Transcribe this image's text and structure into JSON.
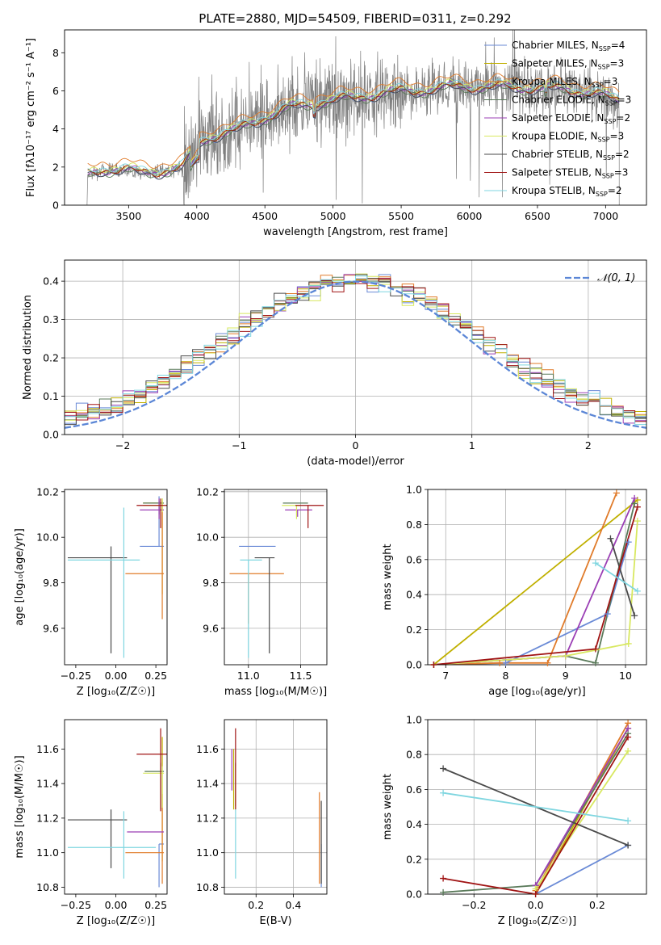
{
  "figure_title": "PLATE=2880, MJD=54509, FIBERID=0311, z=0.292",
  "colors": {
    "Chabrier MILES": "#6a8ad6",
    "Salpeter MILES": "#c0b000",
    "Kroupa MILES": "#e07b2a",
    "Chabrier ELODIE": "#5a7a5a",
    "Salpeter ELODIE": "#9b3fb5",
    "Kroupa ELODIE": "#d8e860",
    "Chabrier STELIB": "#4a4a4a",
    "Salpeter STELIB": "#a01414",
    "Kroupa STELIB": "#7fd6e0",
    "data": "#7f7f7f",
    "normal": "#5b86d6"
  },
  "chart_data": [
    {
      "id": "spectrum",
      "type": "line",
      "xlabel": "wavelength [Angstrom, rest frame]",
      "ylabel": "Flux [fλ10⁻¹⁷ erg cm⁻² s⁻¹ A⁻¹]",
      "xlim": [
        3030,
        7300
      ],
      "ylim": [
        0,
        9.2
      ],
      "xticks": [
        3500,
        4000,
        4500,
        5000,
        5500,
        6000,
        6500,
        7000
      ],
      "yticks": [
        0,
        2,
        4,
        6,
        8
      ],
      "legend_position": "upper right",
      "legend": [
        {
          "label": "Chabrier MILES, N_SSP=4",
          "main": "Chabrier MILES, N",
          "sub": "SSP",
          "tail": "=4"
        },
        {
          "label": "Salpeter MILES, N_SSP=3",
          "main": "Salpeter MILES, N",
          "sub": "SSP",
          "tail": "=3"
        },
        {
          "label": "Kroupa MILES, N_SSP=3",
          "main": "Kroupa MILES, N",
          "sub": "SSP",
          "tail": "=3"
        },
        {
          "label": "Chabrier ELODIE, N_SSP=3",
          "main": "Chabrier ELODIE, N",
          "sub": "SSP",
          "tail": "=3"
        },
        {
          "label": "Salpeter ELODIE, N_SSP=2",
          "main": "Salpeter ELODIE, N",
          "sub": "SSP",
          "tail": "=2"
        },
        {
          "label": "Kroupa ELODIE, N_SSP=3",
          "main": "Kroupa ELODIE, N",
          "sub": "SSP",
          "tail": "=3"
        },
        {
          "label": "Chabrier STELIB, N_SSP=2",
          "main": "Chabrier STELIB, N",
          "sub": "SSP",
          "tail": "=2"
        },
        {
          "label": "Salpeter STELIB, N_SSP=3",
          "main": "Salpeter STELIB, N",
          "sub": "SSP",
          "tail": "=3"
        },
        {
          "label": "Kroupa STELIB, N_SSP=2",
          "main": "Kroupa STELIB, N",
          "sub": "SSP",
          "tail": "=2"
        }
      ],
      "model_continuum": {
        "x": [
          3200,
          3300,
          3400,
          3500,
          3600,
          3700,
          3800,
          3900,
          4000,
          4100,
          4300,
          4500,
          4700,
          4900,
          5100,
          5300,
          5500,
          5700,
          5900,
          6100,
          6300,
          6500,
          6700,
          6900,
          7100
        ],
        "y": [
          1.6,
          1.85,
          1.9,
          1.85,
          1.7,
          1.75,
          1.85,
          2.0,
          3.2,
          3.6,
          3.95,
          4.6,
          5.15,
          5.4,
          5.6,
          5.8,
          6.0,
          6.05,
          6.25,
          6.2,
          6.2,
          6.15,
          6.1,
          5.9,
          5.5
        ]
      },
      "data_spectrum": {
        "start": 3195,
        "end": 7100,
        "note": "noisy observed spectrum around the model"
      }
    },
    {
      "id": "residuals",
      "type": "histogram",
      "xlabel": "(data-model)/error",
      "ylabel": "Normed distribution",
      "xlim": [
        -2.5,
        2.5
      ],
      "ylim": [
        0,
        0.455
      ],
      "xticks": [
        -2,
        -1,
        0,
        1,
        2
      ],
      "yticks": [
        0.0,
        0.1,
        0.2,
        0.3,
        0.4
      ],
      "legend": [
        "𝒩(0, 1)"
      ],
      "legend_position": "upper right",
      "bins": 50
    },
    {
      "id": "age-vs-Z",
      "type": "errorbar",
      "xlabel": "Z [log₁₀(Z/Z☉)]",
      "ylabel": "age  [log₁₀(age/yr)]",
      "xlim": [
        -0.32,
        0.32
      ],
      "ylim": [
        9.44,
        10.21
      ],
      "xticks": [
        -0.25,
        0.0,
        0.25
      ],
      "yticks": [
        9.6,
        9.8,
        10.0,
        10.2
      ],
      "points": [
        {
          "series": "Chabrier MILES",
          "x": 0.27,
          "y": 9.96,
          "xerr": [
            0.12,
            0.03
          ],
          "yerr": [
            0.0,
            0.22
          ]
        },
        {
          "series": "Salpeter MILES",
          "x": 0.29,
          "y": 10.15,
          "xerr": [
            0.12,
            0.0
          ],
          "yerr": [
            0.4,
            0.02
          ]
        },
        {
          "series": "Kroupa MILES",
          "x": 0.29,
          "y": 9.84,
          "xerr": [
            0.23,
            0.01
          ],
          "yerr": [
            0.2,
            0.32
          ]
        },
        {
          "series": "Chabrier ELODIE",
          "x": 0.27,
          "y": 10.15,
          "xerr": [
            0.1,
            0.03
          ],
          "yerr": [
            0.05,
            0.01
          ]
        },
        {
          "series": "Salpeter ELODIE",
          "x": 0.27,
          "y": 10.12,
          "xerr": [
            0.12,
            0.03
          ],
          "yerr": [
            0.04,
            0.05
          ]
        },
        {
          "series": "Kroupa ELODIE",
          "x": 0.29,
          "y": 10.14,
          "xerr": [
            0.12,
            0.01
          ],
          "yerr": [
            0.03,
            0.03
          ]
        },
        {
          "series": "Chabrier STELIB",
          "x": -0.03,
          "y": 9.91,
          "xerr": [
            0.27,
            0.1
          ],
          "yerr": [
            0.42,
            0.05
          ]
        },
        {
          "series": "Salpeter STELIB",
          "x": 0.28,
          "y": 10.14,
          "xerr": [
            0.15,
            0.04
          ],
          "yerr": [
            0.1,
            0.03
          ]
        },
        {
          "series": "Kroupa STELIB",
          "x": 0.05,
          "y": 9.9,
          "xerr": [
            0.35,
            0.1
          ],
          "yerr": [
            0.43,
            0.23
          ]
        }
      ]
    },
    {
      "id": "age-vs-mass",
      "type": "errorbar",
      "xlabel": "mass [log₁₀(M/M☉)]",
      "xlim": [
        10.77,
        11.75
      ],
      "ylim": [
        9.44,
        10.21
      ],
      "xticks": [
        11.0,
        11.5
      ],
      "yticks": [
        9.6,
        9.8,
        10.0,
        10.2
      ],
      "points": [
        {
          "series": "Chabrier MILES",
          "x": 11.05,
          "y": 9.96,
          "xerr": [
            0.14,
            0.21
          ],
          "yerr": [
            0.0,
            0.0
          ]
        },
        {
          "series": "Salpeter MILES",
          "x": 11.55,
          "y": 10.15,
          "xerr": [
            0.0,
            0.0
          ],
          "yerr": [
            0.0,
            0.0
          ]
        },
        {
          "series": "Kroupa MILES",
          "x": 11.0,
          "y": 9.84,
          "xerr": [
            0.18,
            0.34
          ],
          "yerr": [
            0.22,
            0.0
          ]
        },
        {
          "series": "Chabrier ELODIE",
          "x": 11.47,
          "y": 10.15,
          "xerr": [
            0.14,
            0.1
          ],
          "yerr": [
            0.0,
            0.0
          ]
        },
        {
          "series": "Salpeter ELODIE",
          "x": 11.47,
          "y": 10.12,
          "xerr": [
            0.12,
            0.14
          ],
          "yerr": [
            0.03,
            0.0
          ]
        },
        {
          "series": "Kroupa ELODIE",
          "x": 11.46,
          "y": 10.14,
          "xerr": [
            0.14,
            0.04
          ],
          "yerr": [
            0.06,
            0.0
          ]
        },
        {
          "series": "Chabrier STELIB",
          "x": 11.2,
          "y": 9.91,
          "xerr": [
            0.14,
            0.05
          ],
          "yerr": [
            0.42,
            0.0
          ]
        },
        {
          "series": "Salpeter STELIB",
          "x": 11.57,
          "y": 10.14,
          "xerr": [
            0.12,
            0.15
          ],
          "yerr": [
            0.1,
            0.0
          ]
        },
        {
          "series": "Kroupa STELIB",
          "x": 11.0,
          "y": 9.9,
          "xerr": [
            0.08,
            0.13
          ],
          "yerr": [
            0.43,
            0.0
          ]
        }
      ]
    },
    {
      "id": "weight-vs-age",
      "type": "line",
      "xlabel": "age  [log₁₀(age/yr)]",
      "ylabel": "mass weight",
      "xlim": [
        6.7,
        10.35
      ],
      "ylim": [
        0,
        1
      ],
      "xticks": [
        7,
        8,
        9,
        10
      ],
      "yticks": [
        0.0,
        0.2,
        0.4,
        0.6,
        0.8,
        1.0
      ],
      "series": [
        {
          "name": "Chabrier MILES",
          "x": [
            6.8,
            8.0,
            9.7,
            10.05
          ],
          "y": [
            0.0,
            0.01,
            0.29,
            0.7
          ]
        },
        {
          "name": "Salpeter MILES",
          "x": [
            6.8,
            10.2
          ],
          "y": [
            0.0,
            0.94
          ]
        },
        {
          "name": "Kroupa MILES",
          "x": [
            6.8,
            7.9,
            8.7,
            9.85
          ],
          "y": [
            0.0,
            0.01,
            0.01,
            0.98
          ]
        },
        {
          "name": "Chabrier ELODIE",
          "x": [
            6.8,
            9.0,
            9.5,
            10.15
          ],
          "y": [
            0.0,
            0.05,
            0.01,
            0.92
          ]
        },
        {
          "name": "Salpeter ELODIE",
          "x": [
            6.8,
            9.0,
            10.15
          ],
          "y": [
            0.0,
            0.05,
            0.95
          ]
        },
        {
          "name": "Kroupa ELODIE",
          "x": [
            6.8,
            9.0,
            10.05,
            10.2
          ],
          "y": [
            0.0,
            0.05,
            0.12,
            0.82
          ]
        },
        {
          "name": "Chabrier STELIB",
          "x": [
            9.75,
            10.15
          ],
          "y": [
            0.72,
            0.28
          ]
        },
        {
          "name": "Salpeter STELIB",
          "x": [
            6.8,
            9.5,
            10.2
          ],
          "y": [
            0.0,
            0.09,
            0.9
          ]
        },
        {
          "name": "Kroupa STELIB",
          "x": [
            9.5,
            10.2
          ],
          "y": [
            0.58,
            0.42
          ]
        }
      ]
    },
    {
      "id": "mass-vs-Z",
      "type": "errorbar",
      "xlabel": "Z [log₁₀(Z/Z☉)]",
      "ylabel": "mass [log₁₀(M/M☉)]",
      "xlim": [
        -0.32,
        0.32
      ],
      "ylim": [
        10.76,
        11.77
      ],
      "xticks": [
        -0.25,
        0.0,
        0.25
      ],
      "yticks": [
        10.8,
        11.0,
        11.2,
        11.4,
        11.6
      ],
      "points": [
        {
          "series": "Chabrier MILES",
          "x": 0.27,
          "y": 11.05,
          "xerr": [
            0.0,
            0.03
          ],
          "yerr": [
            0.25,
            0.0
          ]
        },
        {
          "series": "Salpeter MILES",
          "x": 0.29,
          "y": 11.55,
          "xerr": [
            0.0,
            0.0
          ],
          "yerr": [
            0.6,
            0.12
          ]
        },
        {
          "series": "Kroupa MILES",
          "x": 0.29,
          "y": 11.0,
          "xerr": [
            0.23,
            0.01
          ],
          "yerr": [
            0.18,
            0.34
          ]
        },
        {
          "series": "Chabrier ELODIE",
          "x": 0.28,
          "y": 11.47,
          "xerr": [
            0.1,
            0.02
          ],
          "yerr": [
            0.22,
            0.05
          ]
        },
        {
          "series": "Salpeter ELODIE",
          "x": 0.27,
          "y": 11.12,
          "xerr": [
            0.2,
            0.03
          ],
          "yerr": [
            0.0,
            0.0
          ]
        },
        {
          "series": "Kroupa ELODIE",
          "x": 0.29,
          "y": 11.46,
          "xerr": [
            0.12,
            0.01
          ],
          "yerr": [
            0.2,
            0.04
          ]
        },
        {
          "series": "Chabrier STELIB",
          "x": -0.03,
          "y": 11.19,
          "xerr": [
            0.27,
            0.1
          ],
          "yerr": [
            0.28,
            0.06
          ]
        },
        {
          "series": "Salpeter STELIB",
          "x": 0.28,
          "y": 11.57,
          "xerr": [
            0.15,
            0.04
          ],
          "yerr": [
            0.33,
            0.15
          ]
        },
        {
          "series": "Kroupa STELIB",
          "x": 0.05,
          "y": 11.03,
          "xerr": [
            0.35,
            0.2
          ],
          "yerr": [
            0.18,
            0.21
          ]
        }
      ]
    },
    {
      "id": "mass-vs-EBV",
      "type": "errorbar",
      "xlabel": "E(B-V)",
      "xlim": [
        0.03,
        0.58
      ],
      "ylim": [
        10.76,
        11.77
      ],
      "xticks": [
        0.2,
        0.4
      ],
      "yticks": [
        10.8,
        11.0,
        11.2,
        11.4,
        11.6
      ],
      "points": [
        {
          "series": "Chabrier MILES",
          "x": 0.55,
          "y": 11.05,
          "yerr": [
            0.25,
            0.0
          ]
        },
        {
          "series": "Salpeter MILES",
          "x": 0.08,
          "y": 11.45,
          "yerr": [
            0.2,
            0.15
          ]
        },
        {
          "series": "Kroupa MILES",
          "x": 0.54,
          "y": 11.1,
          "yerr": [
            0.28,
            0.25
          ]
        },
        {
          "series": "Chabrier ELODIE",
          "x": 0.09,
          "y": 11.47,
          "yerr": [
            0.2,
            0.05
          ]
        },
        {
          "series": "Salpeter ELODIE",
          "x": 0.07,
          "y": 11.5,
          "yerr": [
            0.14,
            0.1
          ]
        },
        {
          "series": "Kroupa ELODIE",
          "x": 0.09,
          "y": 11.45,
          "yerr": [
            0.2,
            0.05
          ]
        },
        {
          "series": "Chabrier STELIB",
          "x": 0.55,
          "y": 11.1,
          "yerr": [
            0.28,
            0.2
          ]
        },
        {
          "series": "Salpeter STELIB",
          "x": 0.09,
          "y": 11.5,
          "yerr": [
            0.25,
            0.22
          ]
        },
        {
          "series": "Kroupa STELIB",
          "x": 0.09,
          "y": 11.05,
          "yerr": [
            0.2,
            0.2
          ]
        }
      ]
    },
    {
      "id": "weight-vs-Z",
      "type": "line",
      "xlabel": "Z [log₁₀(Z/Z☉)]",
      "ylabel": "mass weight",
      "xlim": [
        -0.35,
        0.36
      ],
      "ylim": [
        0,
        1
      ],
      "xticks": [
        -0.2,
        0.0,
        0.2
      ],
      "yticks": [
        0.0,
        0.2,
        0.4,
        0.6,
        0.8,
        1.0
      ],
      "series": [
        {
          "name": "Chabrier MILES",
          "x": [
            0.0,
            0.3
          ],
          "y": [
            0.0,
            0.28
          ]
        },
        {
          "name": "Salpeter MILES",
          "x": [
            0.0,
            0.3
          ],
          "y": [
            0.0,
            0.95
          ]
        },
        {
          "name": "Kroupa MILES",
          "x": [
            0.0,
            0.3
          ],
          "y": [
            0.02,
            0.98
          ]
        },
        {
          "name": "Chabrier ELODIE",
          "x": [
            -0.3,
            0.0,
            0.3
          ],
          "y": [
            0.01,
            0.05,
            0.92
          ]
        },
        {
          "name": "Salpeter ELODIE",
          "x": [
            0.0,
            0.3
          ],
          "y": [
            0.05,
            0.95
          ]
        },
        {
          "name": "Kroupa ELODIE",
          "x": [
            0.0,
            0.3
          ],
          "y": [
            0.03,
            0.82
          ]
        },
        {
          "name": "Chabrier STELIB",
          "x": [
            -0.3,
            0.3
          ],
          "y": [
            0.72,
            0.28
          ]
        },
        {
          "name": "Salpeter STELIB",
          "x": [
            -0.3,
            0.0,
            0.3
          ],
          "y": [
            0.09,
            0.0,
            0.9
          ]
        },
        {
          "name": "Kroupa STELIB",
          "x": [
            -0.3,
            0.3
          ],
          "y": [
            0.58,
            0.42
          ]
        }
      ]
    }
  ]
}
